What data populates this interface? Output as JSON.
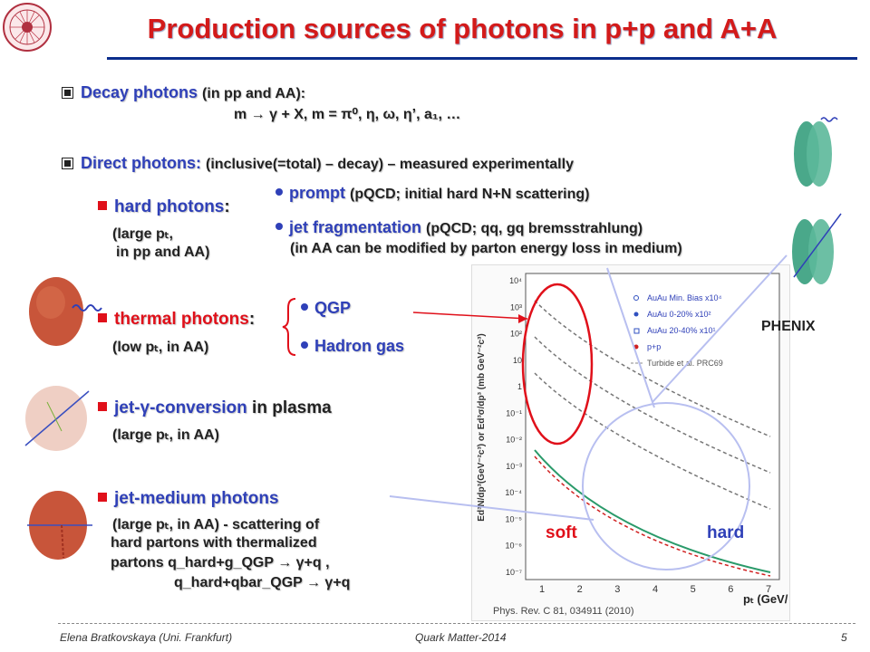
{
  "title": "Production sources of photons in p+p and A+A",
  "decay": {
    "label": "Decay photons",
    "detail": "(in pp and AA):",
    "formula": "m → γ + X,  m = π⁰, η, ω, η’, a₁, …"
  },
  "direct": {
    "label": "Direct photons:",
    "detail": "(inclusive(=total) – decay) – measured experimentally"
  },
  "hard": {
    "label": "hard photons",
    "sub1": "(large pₜ,",
    "sub2": "in pp and AA)",
    "prompt_label": "prompt",
    "prompt_detail": "(pQCD; initial hard N+N scattering)",
    "jetfrag_label": "jet fragmentation",
    "jetfrag_detail": "(pQCD; qq, gq bremsstrahlung)",
    "jetfrag_note": "(in AA can be modified by parton energy loss in medium)"
  },
  "thermal": {
    "label": "thermal photons",
    "sub": "(low pₜ, in AA)",
    "qgp": "QGP",
    "hadron": "Hadron gas"
  },
  "jetconv": {
    "label": "jet-γ-conversion",
    "rest": "in plasma",
    "sub": "(large pₜ, in AA)"
  },
  "jetmed": {
    "label": "jet-medium photons",
    "line1": "(large pₜ, in AA) -  scattering of",
    "line2": "hard partons with thermalized",
    "line3": "partons q_hard+g_QGP → γ+q ,",
    "line4": "q_hard+qbar_QGP → γ+q"
  },
  "plot": {
    "phenix": "PHENIX",
    "soft": "soft",
    "hard": "hard",
    "ylabel": "Ed³N/dp³(GeV⁻²c³) or Ed³σ/dp³ (mb GeV⁻²c³)",
    "xlabel": "pₜ (GeV/c)",
    "citation": "Phys. Rev. C 81, 034911 (2010)",
    "legend": [
      "AuAu Min. Bias x10⁴",
      "AuAu 0-20% x10²",
      "AuAu 20-40% x10¹",
      "p+p",
      "Turbide et al. PRC69"
    ],
    "yticks": [
      "10⁴",
      "10³",
      "10²",
      "10",
      "1",
      "10⁻¹",
      "10⁻²",
      "10⁻³",
      "10⁻⁴",
      "10⁻⁵",
      "10⁻⁶",
      "10⁻⁷"
    ],
    "xticks": [
      "1",
      "2",
      "3",
      "4",
      "5",
      "6",
      "7"
    ]
  },
  "footer": {
    "author": "Elena Bratkovskaya  (Uni. Frankfurt)",
    "conference": "Quark Matter-2014",
    "page": "5"
  }
}
